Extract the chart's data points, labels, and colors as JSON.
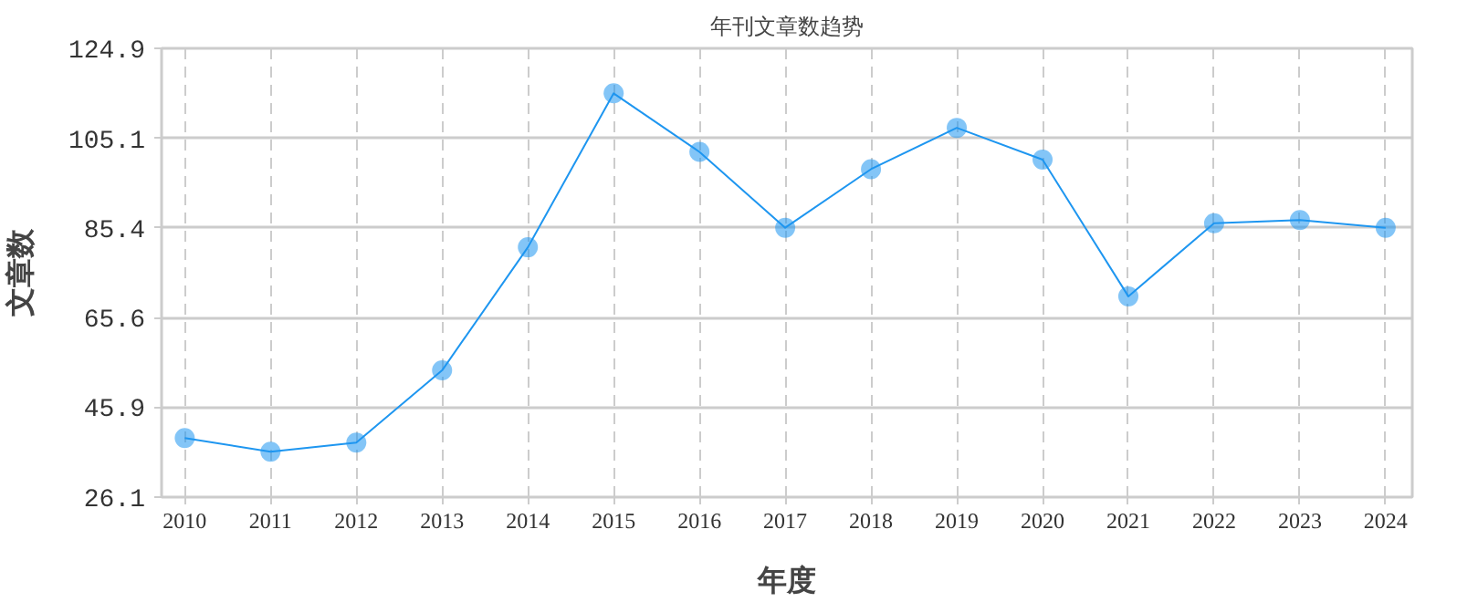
{
  "chart_data": {
    "type": "line",
    "title": "年刊文章数趋势",
    "xlabel": "年度",
    "ylabel": "文章数",
    "x": [
      2010,
      2011,
      2012,
      2013,
      2014,
      2015,
      2016,
      2017,
      2018,
      2019,
      2020,
      2021,
      2022,
      2023,
      2024
    ],
    "series": [
      {
        "color": "#1e96f0",
        "values": [
          39.1,
          36.1,
          38.1,
          54.0,
          81.1,
          115.0,
          102.1,
          85.4,
          98.3,
          107.4,
          100.4,
          70.3,
          86.4,
          87.1,
          85.4
        ]
      }
    ],
    "xlim": [
      2009.73,
      2024.31
    ],
    "xticks": [
      2010,
      2011,
      2012,
      2013,
      2014,
      2015,
      2016,
      2017,
      2018,
      2019,
      2020,
      2021,
      2022,
      2023,
      2024
    ],
    "ylim": [
      26.1,
      124.9
    ],
    "yticks": [
      26.1,
      45.9,
      65.6,
      85.4,
      105.1,
      124.9
    ],
    "grid": true,
    "marker": "circle",
    "line_style": "solid"
  }
}
